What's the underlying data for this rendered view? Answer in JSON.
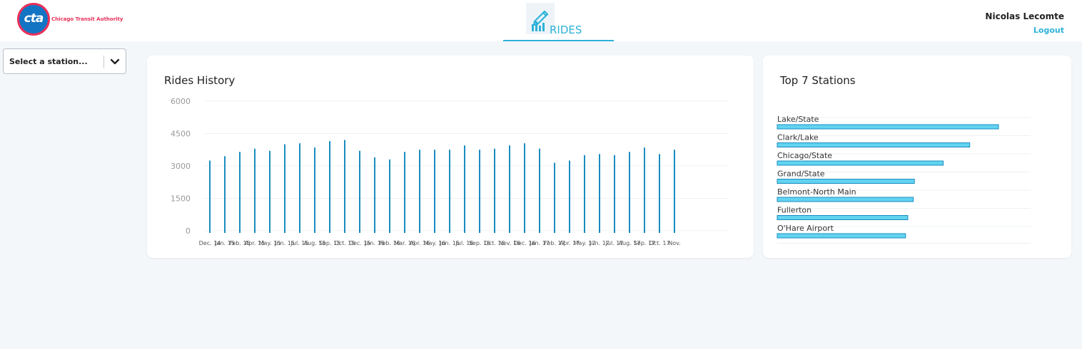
{
  "header": {
    "logo": {
      "mark": "cta",
      "text": "Chicago Transit Authority"
    },
    "nav": {
      "label": "RIDES",
      "icon": "chart-pencil-icon"
    },
    "user": {
      "name": "Nicolas Lecomte",
      "logout_label": "Logout"
    }
  },
  "filters": {
    "station_select": {
      "value": "Select a station...",
      "icon": "chevron-down-icon"
    }
  },
  "colors": {
    "accent": "#2cb2d8",
    "bar_line": "#1a8cc0",
    "station_bar": "#62d3f0",
    "brand_red": "#e8305a",
    "brand_blue": "#1474c4"
  },
  "chart_data": [
    {
      "type": "bar",
      "title": "Rides History",
      "xlabel": "",
      "ylabel": "",
      "ylim": [
        0,
        6000
      ],
      "yticks": [
        "6000",
        "4500",
        "3000",
        "1500",
        "0"
      ],
      "grid": true,
      "categories": [
        "Dec. 14",
        "Jan. 15",
        "Feb. 15",
        "Apr. 15",
        "May. 15",
        "Jun. 15",
        "Jul. 15",
        "Aug. 15",
        "Sep. 15",
        "Oct. 15",
        "Dec. 15",
        "Jan. 16",
        "Feb. 16",
        "Mar. 16",
        "Apr. 16",
        "May. 16",
        "Jun. 16",
        "Jul. 16",
        "Sep. 16",
        "Oct. 16",
        "Nov. 16",
        "Dec. 16",
        "Jan. 17",
        "Feb. 17",
        "Apr. 17",
        "May. 17",
        "Jun. 17",
        "Jul. 17",
        "Aug. 17",
        "Sep. 17",
        "Oct. 17",
        "Nov."
      ],
      "values": [
        3250,
        3450,
        3650,
        3800,
        3700,
        4000,
        4050,
        3850,
        4150,
        4200,
        3700,
        3400,
        3300,
        3650,
        3750,
        3750,
        3750,
        3950,
        3750,
        3800,
        3950,
        4050,
        3800,
        3150,
        3250,
        3500,
        3550,
        3500,
        3650,
        3850,
        3550,
        3750
      ]
    },
    {
      "type": "bar",
      "orientation": "horizontal",
      "title": "Top 7 Stations",
      "categories": [
        "Lake/State",
        "Clark/Lake",
        "Chicago/State",
        "Grand/State",
        "Belmont-North Main",
        "Fullerton",
        "O'Hare Airport"
      ],
      "values": [
        100,
        87,
        75,
        62,
        61.5,
        59,
        58
      ]
    }
  ]
}
